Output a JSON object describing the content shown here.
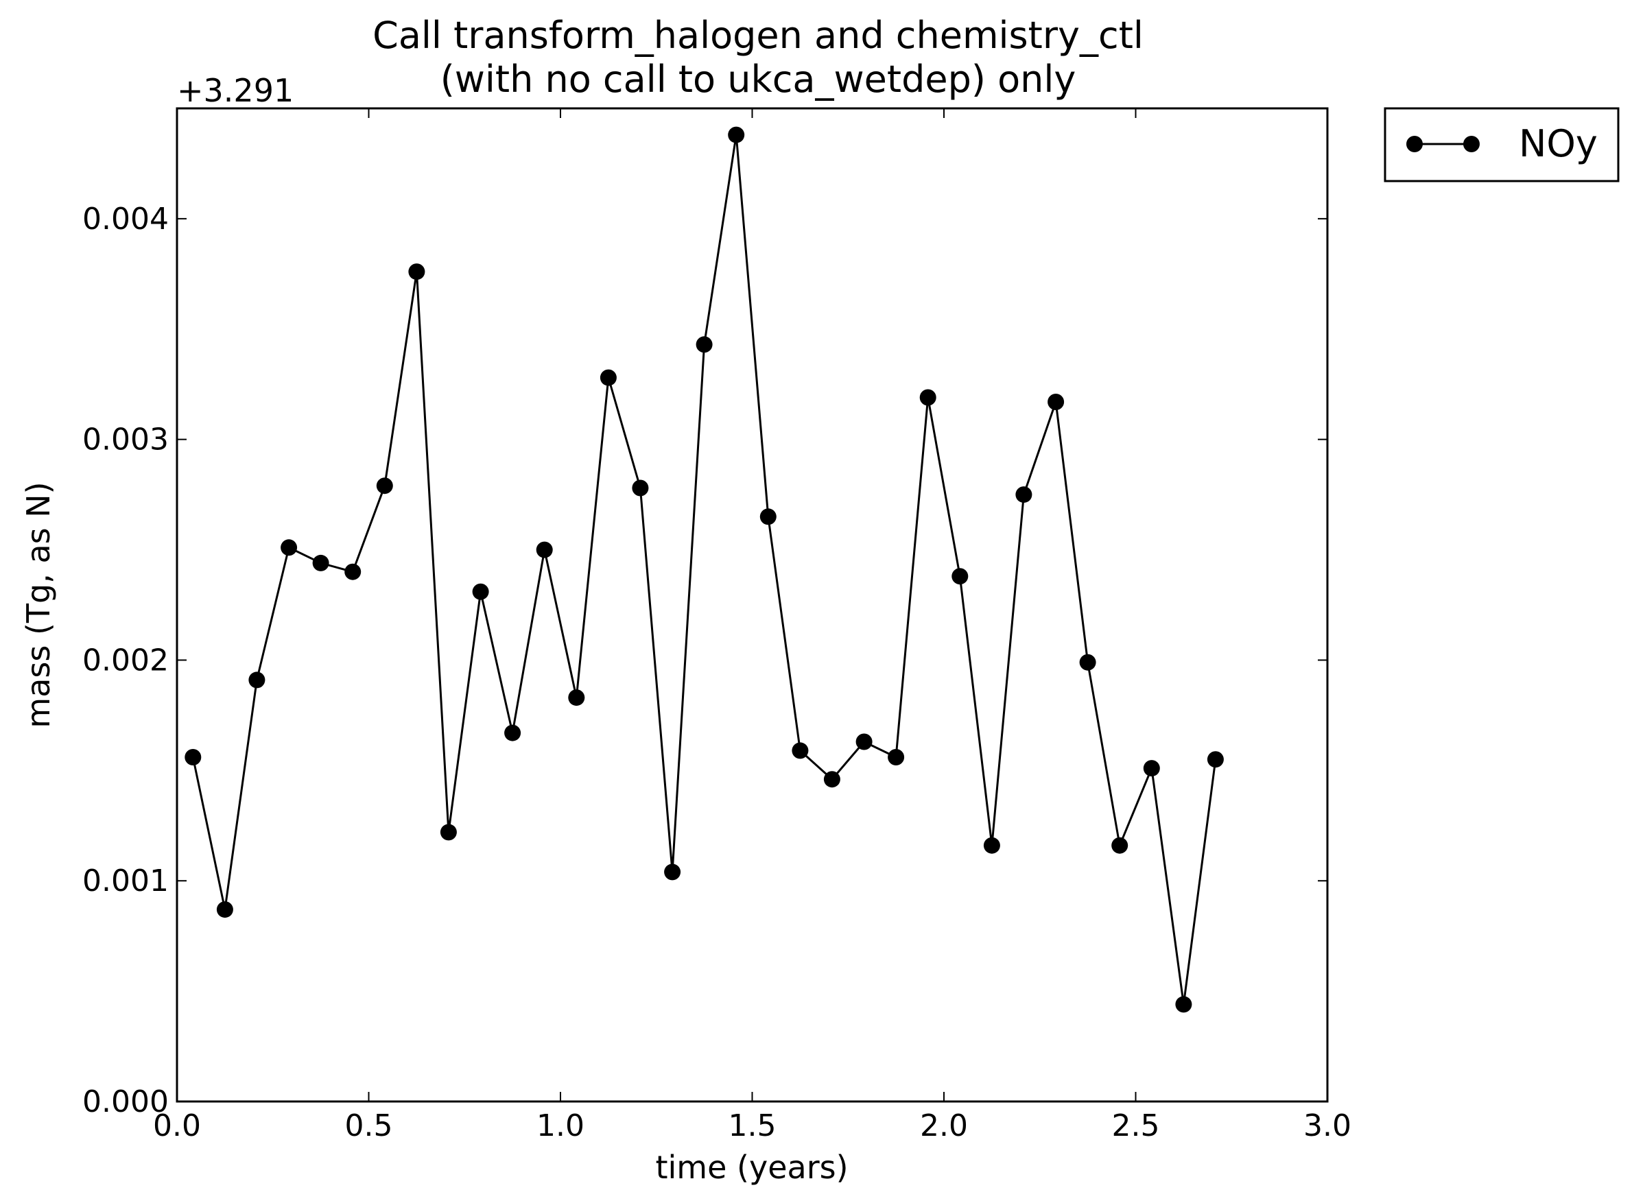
{
  "chart_data": {
    "type": "line",
    "title_line1": "Call transform_halogen and chemistry_ctl",
    "title_line2": "(with no call to ukca_wetdep) only",
    "xlabel": "time (years)",
    "ylabel": "mass (Tg, as N)",
    "y_offset_label": "+3.291",
    "xlim": [
      0.0,
      3.0
    ],
    "ylim": [
      0.0,
      0.0045
    ],
    "x_ticks": [
      0.0,
      0.5,
      1.0,
      1.5,
      2.0,
      2.5,
      3.0
    ],
    "x_tick_labels": [
      "0.0",
      "0.5",
      "1.0",
      "1.5",
      "2.0",
      "2.5",
      "3.0"
    ],
    "y_ticks": [
      0.0,
      0.001,
      0.002,
      0.003,
      0.004
    ],
    "y_tick_labels": [
      "0.000",
      "0.001",
      "0.002",
      "0.003",
      "0.004"
    ],
    "grid": false,
    "legend_position": "outside-top-right",
    "line_color": "#000000",
    "series": [
      {
        "name": "NOy",
        "x": [
          0.0417,
          0.125,
          0.2083,
          0.2917,
          0.375,
          0.4583,
          0.5417,
          0.625,
          0.7083,
          0.7917,
          0.875,
          0.9583,
          1.0417,
          1.125,
          1.2083,
          1.2917,
          1.375,
          1.4583,
          1.5417,
          1.625,
          1.7083,
          1.7917,
          1.875,
          1.9583,
          2.0417,
          2.125,
          2.2083,
          2.2917,
          2.375,
          2.4583,
          2.5417,
          2.625,
          2.7083
        ],
        "y": [
          0.00156,
          0.00087,
          0.00191,
          0.00251,
          0.00244,
          0.0024,
          0.00279,
          0.00376,
          0.00122,
          0.00231,
          0.00167,
          0.0025,
          0.00183,
          0.00328,
          0.00278,
          0.00104,
          0.00343,
          0.00438,
          0.00265,
          0.00159,
          0.00146,
          0.00163,
          0.00156,
          0.00319,
          0.00238,
          0.00116,
          0.00275,
          0.00317,
          0.00199,
          0.00116,
          0.00151,
          0.00044,
          0.00155
        ]
      }
    ]
  }
}
